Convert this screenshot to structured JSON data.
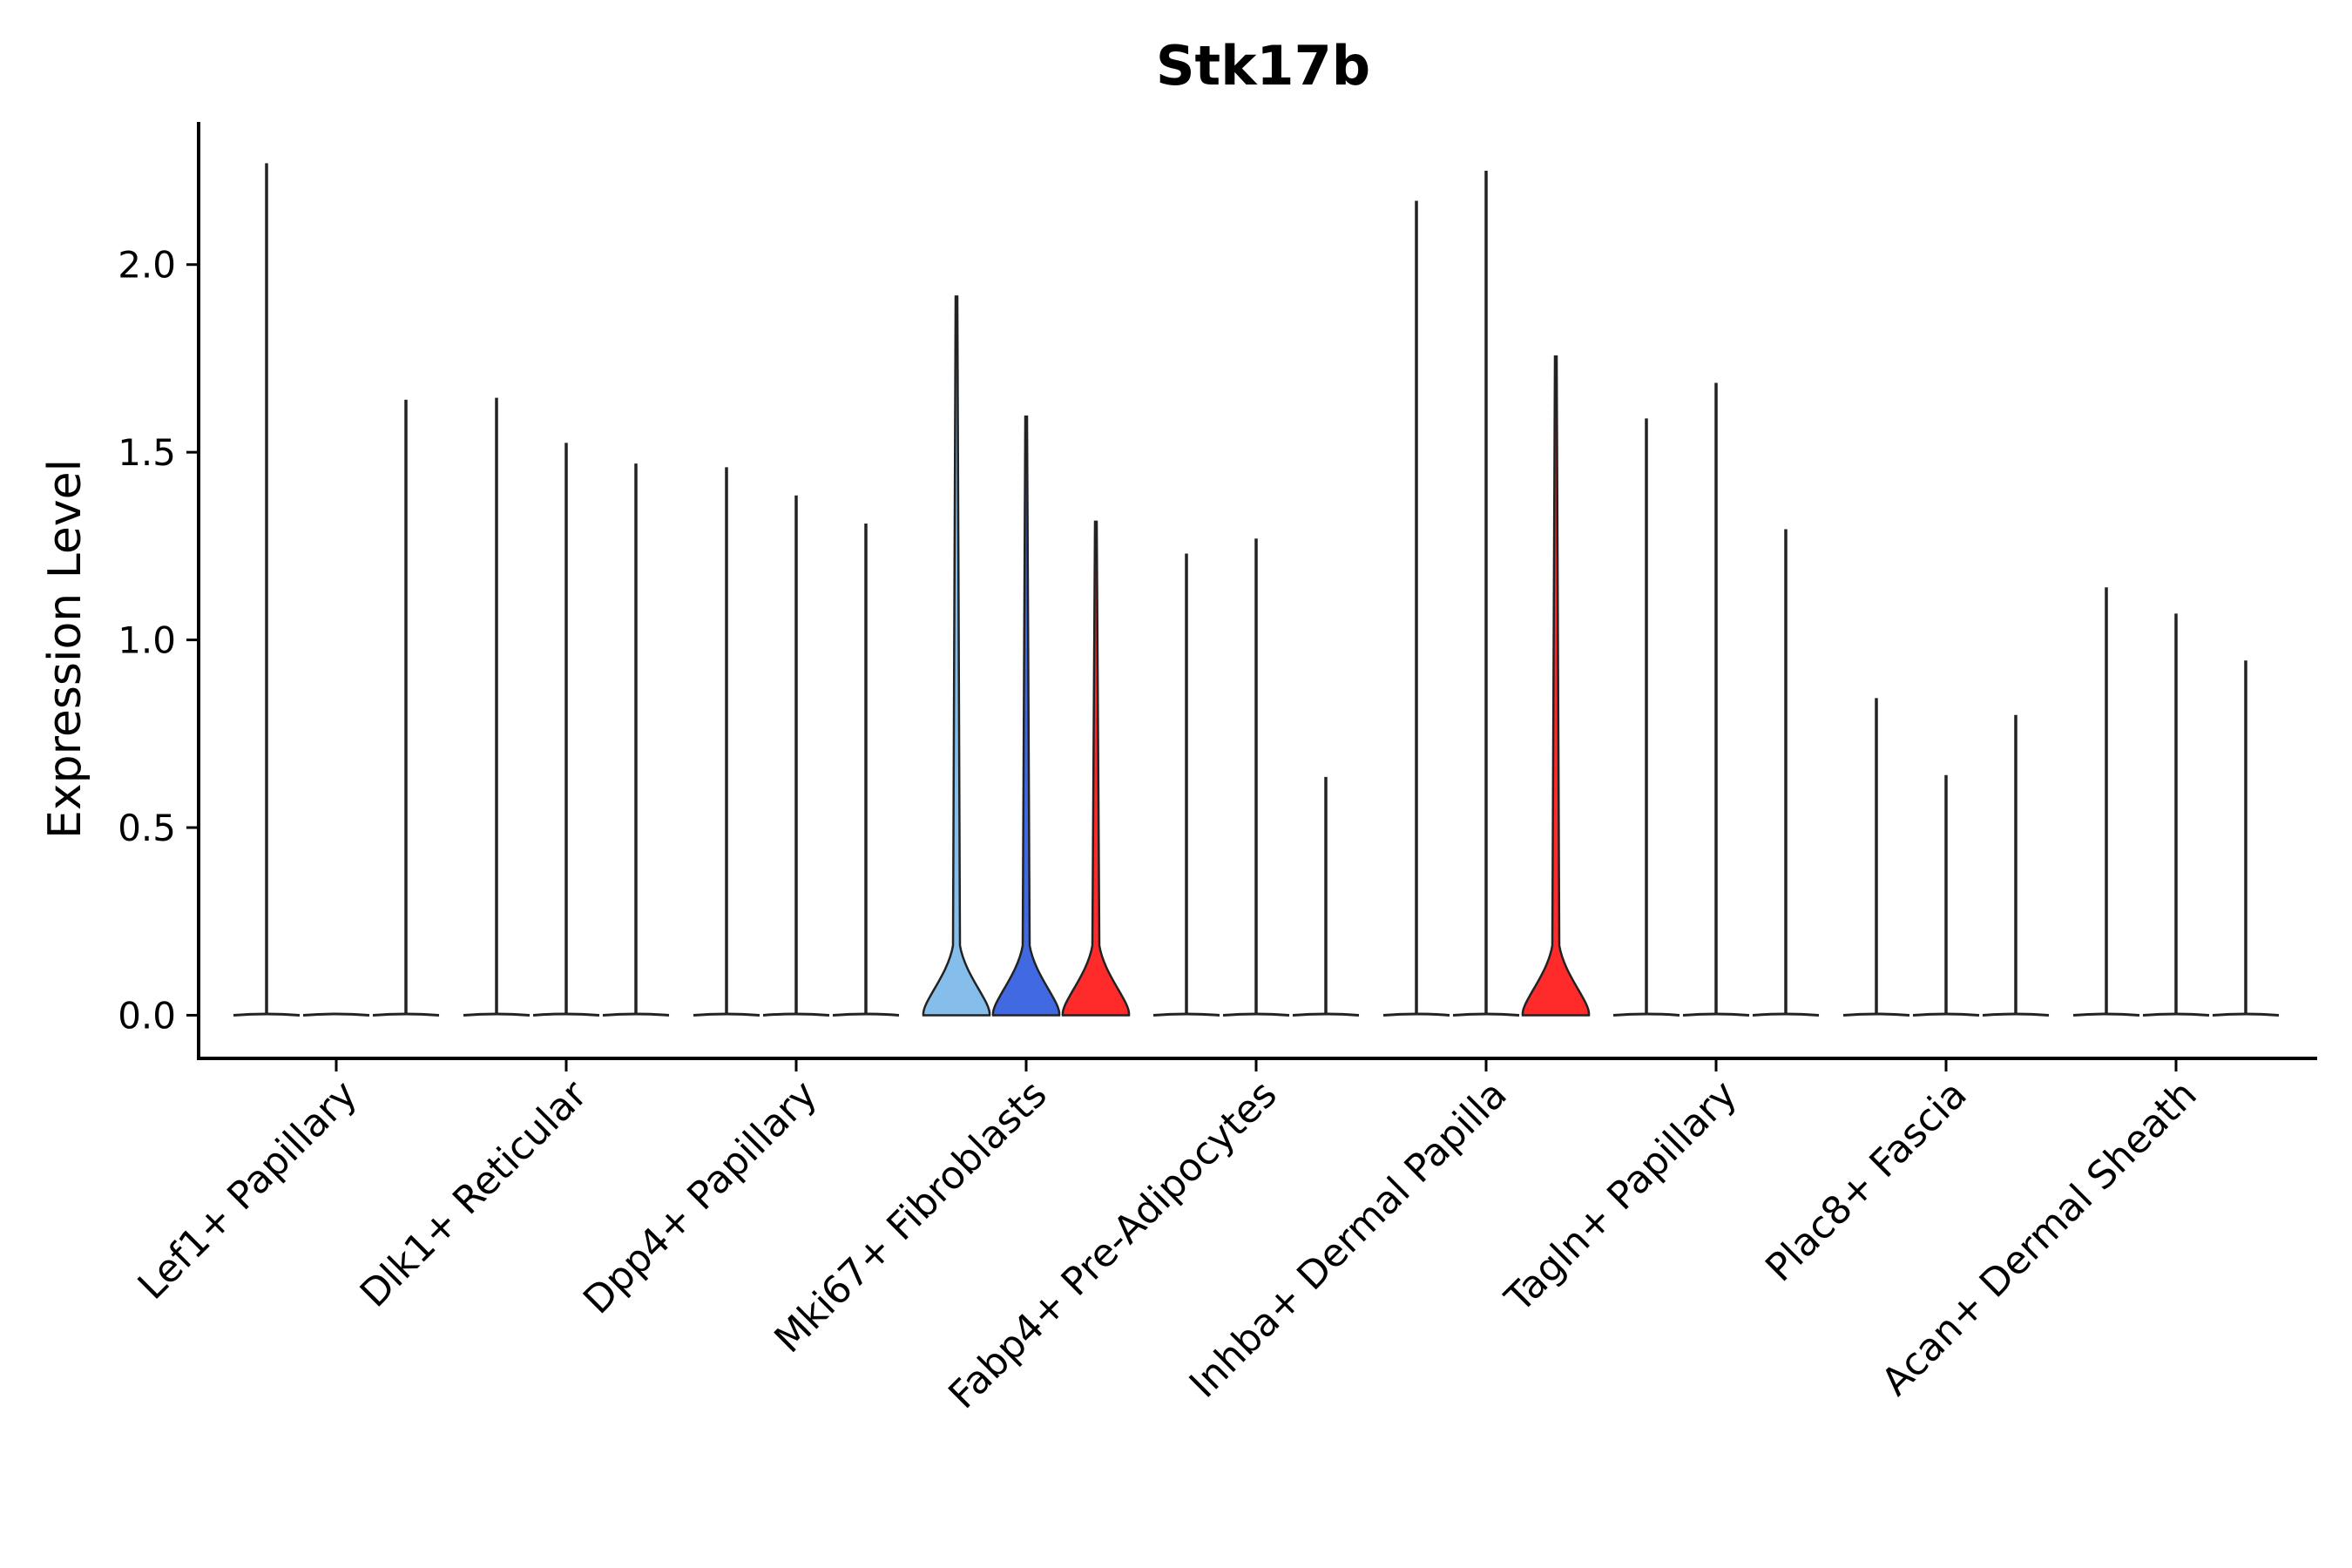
{
  "chart_data": {
    "type": "violin",
    "title": "Stk17b",
    "ylabel": "Expression Level",
    "xlabel": "",
    "ylim": [
      -0.115,
      2.38
    ],
    "yticks": [
      0.0,
      0.5,
      1.0,
      1.5,
      2.0
    ],
    "ytick_labels": [
      "0.0",
      "0.5",
      "1.0",
      "1.5",
      "2.0"
    ],
    "categories": [
      "Lef1+ Papillary",
      "Dlk1+ Reticular",
      "Dpp4+ Papillary",
      "Mki67+ Fibroblasts",
      "Fabp4+ Pre-Adipocytes",
      "Inhba+ Dermal Papilla",
      "Tagln+ Papillary",
      "Plac8+ Fascia",
      "Acan+ Dermal Sheath"
    ],
    "violins": [
      {
        "category": "Lef1+ Papillary",
        "sub": 0,
        "max": 2.27,
        "width": 0.0,
        "color": "#ffffff"
      },
      {
        "category": "Lef1+ Papillary",
        "sub": 1,
        "max": 0.0,
        "width": 0.0,
        "color": "#ffffff"
      },
      {
        "category": "Lef1+ Papillary",
        "sub": 2,
        "max": 1.64,
        "width": 0.0,
        "color": "#ffffff"
      },
      {
        "category": "Dlk1+ Reticular",
        "sub": 0,
        "max": 1.645,
        "width": 0.0,
        "color": "#ffffff"
      },
      {
        "category": "Dlk1+ Reticular",
        "sub": 1,
        "max": 1.525,
        "width": 0.0,
        "color": "#ffffff"
      },
      {
        "category": "Dlk1+ Reticular",
        "sub": 2,
        "max": 1.47,
        "width": 0.0,
        "color": "#ffffff"
      },
      {
        "category": "Dpp4+ Papillary",
        "sub": 0,
        "max": 1.46,
        "width": 0.0,
        "color": "#ffffff"
      },
      {
        "category": "Dpp4+ Papillary",
        "sub": 1,
        "max": 1.385,
        "width": 0.0,
        "color": "#ffffff"
      },
      {
        "category": "Dpp4+ Papillary",
        "sub": 2,
        "max": 1.31,
        "width": 0.0,
        "color": "#ffffff"
      },
      {
        "category": "Mki67+ Fibroblasts",
        "sub": 0,
        "max": 1.915,
        "width": 1.0,
        "color": "#85BEEB"
      },
      {
        "category": "Mki67+ Fibroblasts",
        "sub": 1,
        "max": 1.595,
        "width": 1.0,
        "color": "#4169E1"
      },
      {
        "category": "Mki67+ Fibroblasts",
        "sub": 2,
        "max": 1.315,
        "width": 1.0,
        "color": "#FF2A2A"
      },
      {
        "category": "Fabp4+ Pre-Adipocytes",
        "sub": 0,
        "max": 1.23,
        "width": 0.0,
        "color": "#ffffff"
      },
      {
        "category": "Fabp4+ Pre-Adipocytes",
        "sub": 1,
        "max": 1.27,
        "width": 0.0,
        "color": "#ffffff"
      },
      {
        "category": "Fabp4+ Pre-Adipocytes",
        "sub": 2,
        "max": 0.635,
        "width": 0.0,
        "color": "#ffffff"
      },
      {
        "category": "Inhba+ Dermal Papilla",
        "sub": 0,
        "max": 2.17,
        "width": 0.0,
        "color": "#ffffff"
      },
      {
        "category": "Inhba+ Dermal Papilla",
        "sub": 1,
        "max": 2.25,
        "width": 0.0,
        "color": "#ffffff"
      },
      {
        "category": "Inhba+ Dermal Papilla",
        "sub": 2,
        "max": 1.755,
        "width": 1.0,
        "color": "#FF2A2A"
      },
      {
        "category": "Tagln+ Papillary",
        "sub": 0,
        "max": 1.59,
        "width": 0.0,
        "color": "#ffffff"
      },
      {
        "category": "Tagln+ Papillary",
        "sub": 1,
        "max": 1.685,
        "width": 0.0,
        "color": "#ffffff"
      },
      {
        "category": "Tagln+ Papillary",
        "sub": 2,
        "max": 1.295,
        "width": 0.0,
        "color": "#ffffff"
      },
      {
        "category": "Plac8+ Fascia",
        "sub": 0,
        "max": 0.845,
        "width": 0.0,
        "color": "#ffffff"
      },
      {
        "category": "Plac8+ Fascia",
        "sub": 1,
        "max": 0.64,
        "width": 0.0,
        "color": "#ffffff"
      },
      {
        "category": "Plac8+ Fascia",
        "sub": 2,
        "max": 0.8,
        "width": 0.0,
        "color": "#ffffff"
      },
      {
        "category": "Acan+ Dermal Sheath",
        "sub": 0,
        "max": 1.14,
        "width": 0.0,
        "color": "#ffffff"
      },
      {
        "category": "Acan+ Dermal Sheath",
        "sub": 1,
        "max": 1.07,
        "width": 0.0,
        "color": "#ffffff"
      },
      {
        "category": "Acan+ Dermal Sheath",
        "sub": 2,
        "max": 0.945,
        "width": 0.0,
        "color": "#ffffff"
      }
    ],
    "grid": false,
    "legend": "none"
  }
}
